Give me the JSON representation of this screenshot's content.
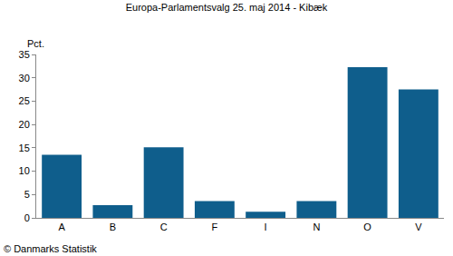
{
  "chart_data": {
    "type": "bar",
    "title": "Europa-Parlamentsvalg 25. maj 2014 - Kibæk",
    "ylabel": "Pct.",
    "annotations": [
      "© Danmarks Statistik"
    ],
    "categories": [
      "A",
      "B",
      "C",
      "F",
      "I",
      "N",
      "O",
      "V"
    ],
    "values": [
      13.5,
      2.7,
      15.1,
      3.6,
      1.3,
      3.6,
      32.3,
      27.5
    ],
    "color": "#0f5e8c",
    "ylim": [
      0,
      35
    ],
    "yticks": [
      0,
      5,
      10,
      15,
      20,
      25,
      30,
      35
    ],
    "grid": false
  }
}
